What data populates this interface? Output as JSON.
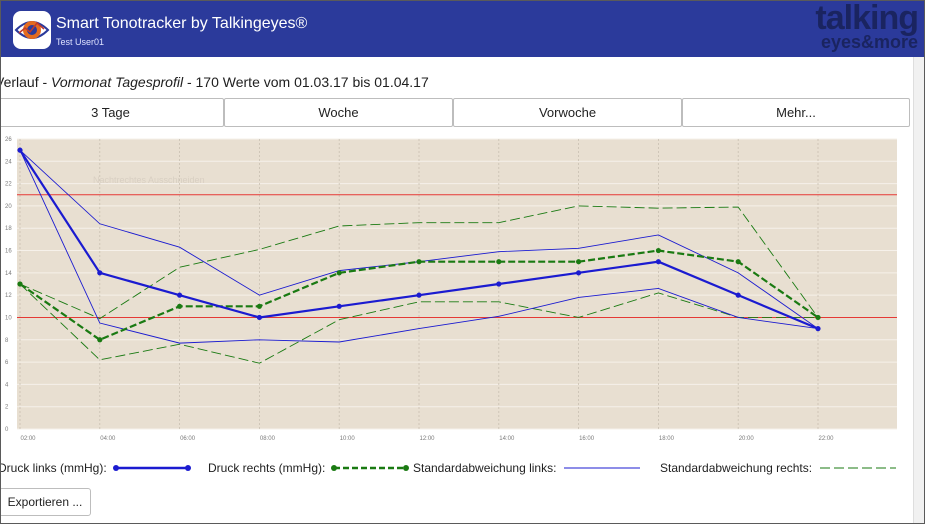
{
  "window": {
    "title": "Smart Tonotracker by Talkingeyes®",
    "user": "Test User01",
    "logo_top": "talking",
    "logo_bottom": "eyes&more"
  },
  "header": {
    "prefix": "Verlauf  -  ",
    "profile": "Vormonat Tagesprofil",
    "summary": "  -  170 Werte vom 01.03.17 bis 01.04.17"
  },
  "tabs": [
    {
      "label": "3 Tage"
    },
    {
      "label": "Woche"
    },
    {
      "label": "Vorwoche"
    },
    {
      "label": "Mehr..."
    }
  ],
  "hint": "Nachtrechtes Ausschneiden",
  "legend": {
    "left": "Druck links (mmHg):",
    "right": "Druck rechts (mmHg):",
    "sd_left": "Standardabweichung links:",
    "sd_right": "Standardabweichung rechts:"
  },
  "export_label": "Exportieren ...",
  "colors": {
    "titlebar": "#2b3a9b",
    "plot_bg": "#e8dfd1",
    "left": "#1b1bd0",
    "right": "#1a7a12",
    "threshold": "#e53935"
  },
  "icons": [
    "eye-icon"
  ],
  "chart_data": {
    "type": "line",
    "x": [
      "02:00",
      "04:00",
      "06:00",
      "08:00",
      "10:00",
      "12:00",
      "14:00",
      "16:00",
      "18:00",
      "20:00",
      "22:00"
    ],
    "ylim": [
      0,
      26
    ],
    "yticks": [
      0,
      2,
      4,
      6,
      8,
      10,
      12,
      14,
      16,
      18,
      20,
      22,
      24,
      26
    ],
    "grid": true,
    "thresholds": [
      21,
      10
    ],
    "series": [
      {
        "name": "Druck links (mmHg):",
        "values": [
          25,
          14,
          12,
          10,
          11,
          12,
          13,
          14,
          15,
          12,
          9
        ]
      },
      {
        "name": "Druck rechts (mmHg):",
        "values": [
          13,
          8,
          11,
          11,
          14,
          15,
          15,
          15,
          16,
          15,
          10
        ]
      },
      {
        "name": "Standardabweichung links:",
        "upper": [
          25,
          18.4,
          16.3,
          12,
          14.2,
          15,
          15.9,
          16.2,
          17.4,
          14,
          9
        ],
        "lower": [
          25,
          9.5,
          7.7,
          8,
          7.8,
          9,
          10.1,
          11.8,
          12.6,
          10,
          9
        ]
      },
      {
        "name": "Standardabweichung rechts:",
        "upper": [
          13,
          9.9,
          14.5,
          16.1,
          18.2,
          18.5,
          18.5,
          20,
          19.8,
          19.9,
          10
        ],
        "lower": [
          13,
          6.2,
          7.6,
          5.9,
          9.8,
          11.4,
          11.4,
          10,
          12.2,
          10,
          10
        ]
      }
    ]
  }
}
